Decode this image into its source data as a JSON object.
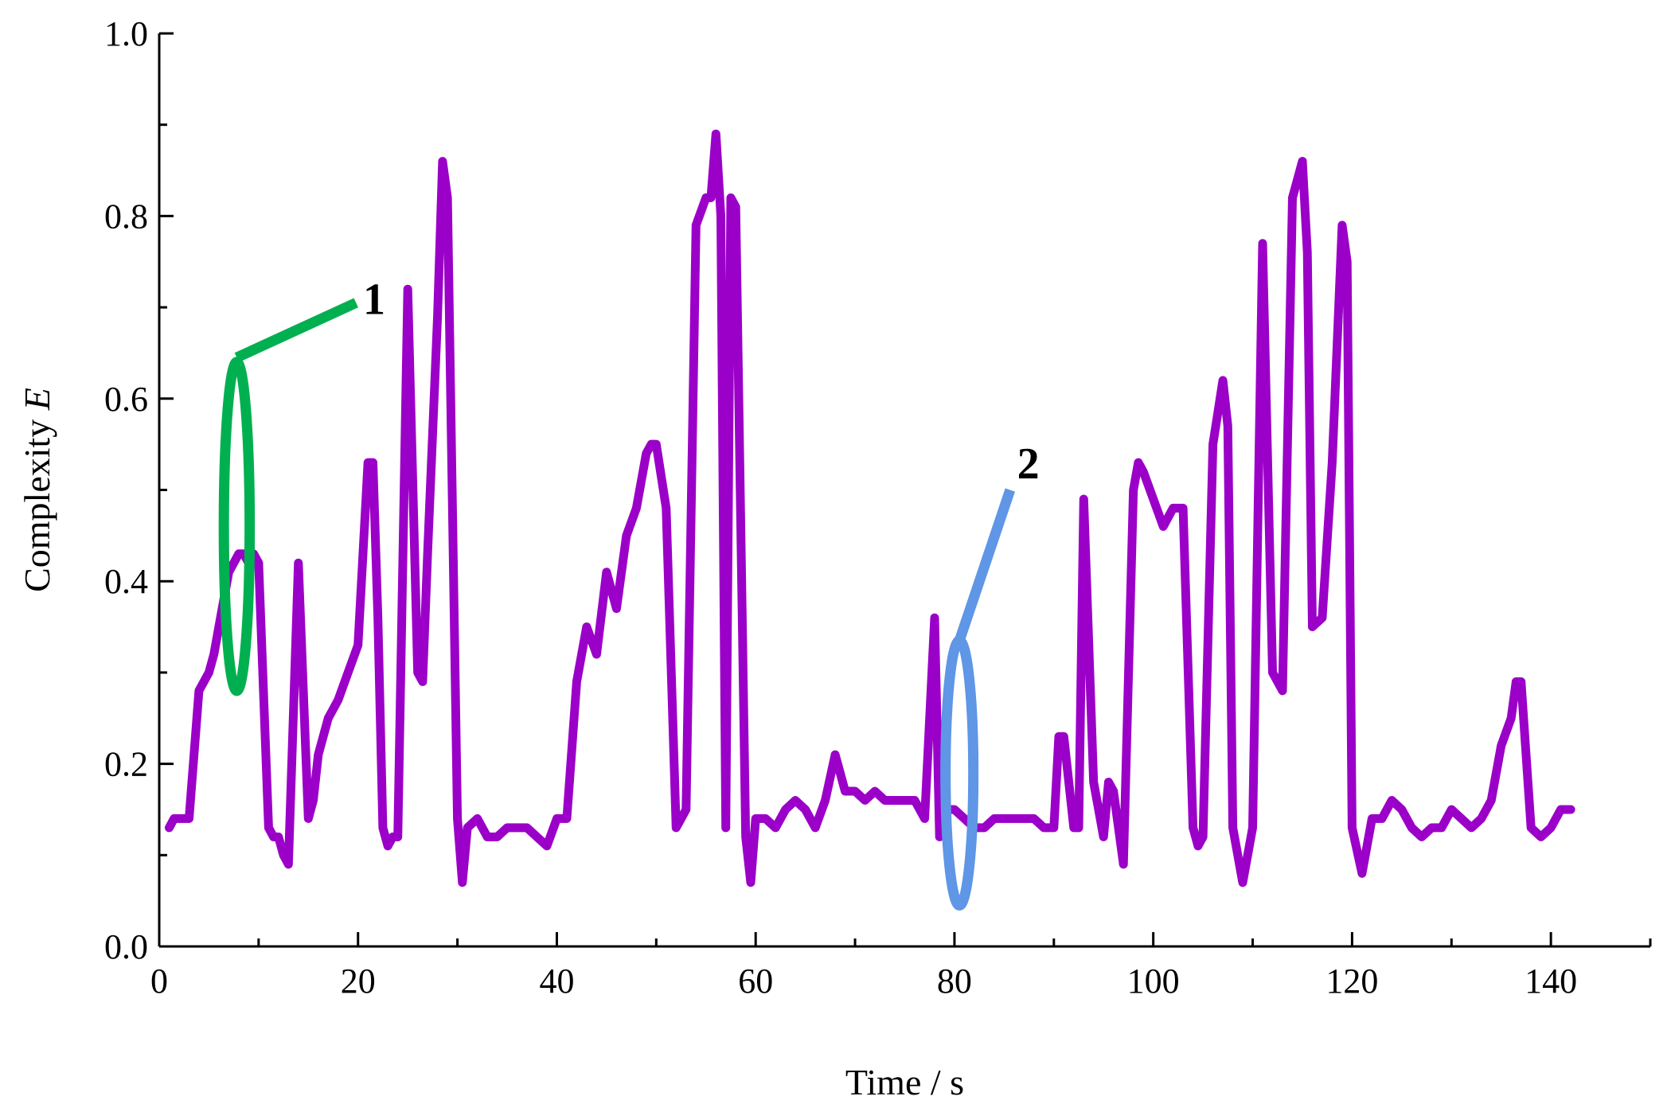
{
  "chart_data": {
    "type": "line",
    "title": "",
    "xlabel": "Time / s",
    "ylabel_prefix": "Complexity ",
    "ylabel_var": "E",
    "xlim": [
      0,
      150
    ],
    "ylim": [
      0,
      1.0
    ],
    "x_ticks": [
      0,
      20,
      40,
      60,
      80,
      100,
      120,
      140
    ],
    "y_ticks": [
      0.0,
      0.2,
      0.4,
      0.6,
      0.8,
      1.0
    ],
    "x_tick_labels": [
      "0",
      "20",
      "40",
      "60",
      "80",
      "100",
      "120",
      "140"
    ],
    "y_tick_labels": [
      "0.0",
      "0.2",
      "0.4",
      "0.6",
      "0.8",
      "1.0"
    ],
    "grid": false,
    "legend": "none",
    "series": [
      {
        "name": "Complexity E",
        "color": "#9b00c8",
        "x": [
          1,
          1.5,
          2,
          3,
          4,
          5,
          5.5,
          6,
          7,
          8,
          8.5,
          9,
          9.5,
          10,
          11,
          11.5,
          12,
          12.5,
          13,
          14,
          15,
          15.5,
          16,
          17,
          18,
          19,
          20,
          21,
          21.5,
          22,
          22.5,
          23,
          23.5,
          24,
          25,
          26,
          26.5,
          27,
          28,
          28.5,
          29,
          30,
          30.5,
          31,
          32,
          33,
          34,
          35,
          36,
          37,
          38,
          39,
          40,
          41,
          42,
          43,
          44,
          45,
          46,
          47,
          48,
          49,
          49.5,
          50,
          51,
          52,
          53,
          54,
          55,
          55.5,
          56,
          56.5,
          57,
          57.5,
          58,
          59,
          59.5,
          60,
          61,
          62,
          63,
          64,
          65,
          66,
          67,
          68,
          69,
          70,
          71,
          72,
          73,
          74,
          75,
          76,
          77,
          78,
          78.5,
          79,
          80,
          81,
          82,
          83,
          84,
          85,
          86,
          87,
          88,
          89,
          90,
          90.5,
          91,
          92,
          92.5,
          93,
          94,
          95,
          95.5,
          96,
          97,
          98,
          98.5,
          99,
          100,
          101,
          102,
          103,
          104,
          104.5,
          105,
          106,
          107,
          107.5,
          108,
          109,
          110,
          111,
          112,
          113,
          114,
          115,
          115.5,
          116,
          117,
          118,
          119,
          119.5,
          120,
          121,
          122,
          123,
          124,
          125,
          126,
          127,
          128,
          129,
          130,
          131,
          132,
          133,
          134,
          135,
          136,
          136.5,
          137,
          138,
          139,
          140,
          141,
          142
        ],
        "y": [
          0.13,
          0.14,
          0.14,
          0.14,
          0.28,
          0.3,
          0.32,
          0.35,
          0.41,
          0.43,
          0.43,
          0.42,
          0.43,
          0.42,
          0.13,
          0.12,
          0.12,
          0.1,
          0.09,
          0.42,
          0.14,
          0.16,
          0.21,
          0.25,
          0.27,
          0.3,
          0.33,
          0.53,
          0.53,
          0.36,
          0.13,
          0.11,
          0.12,
          0.12,
          0.72,
          0.3,
          0.29,
          0.43,
          0.69,
          0.86,
          0.82,
          0.14,
          0.07,
          0.13,
          0.14,
          0.12,
          0.12,
          0.13,
          0.13,
          0.13,
          0.12,
          0.11,
          0.14,
          0.14,
          0.29,
          0.35,
          0.32,
          0.41,
          0.37,
          0.45,
          0.48,
          0.54,
          0.55,
          0.55,
          0.48,
          0.13,
          0.15,
          0.79,
          0.82,
          0.82,
          0.89,
          0.8,
          0.13,
          0.82,
          0.81,
          0.12,
          0.07,
          0.14,
          0.14,
          0.13,
          0.15,
          0.16,
          0.15,
          0.13,
          0.16,
          0.21,
          0.17,
          0.17,
          0.16,
          0.17,
          0.16,
          0.16,
          0.16,
          0.16,
          0.14,
          0.36,
          0.12,
          0.15,
          0.15,
          0.14,
          0.13,
          0.13,
          0.14,
          0.14,
          0.14,
          0.14,
          0.14,
          0.13,
          0.13,
          0.23,
          0.23,
          0.13,
          0.13,
          0.49,
          0.18,
          0.12,
          0.18,
          0.17,
          0.09,
          0.5,
          0.53,
          0.52,
          0.49,
          0.46,
          0.48,
          0.48,
          0.13,
          0.11,
          0.12,
          0.55,
          0.62,
          0.57,
          0.13,
          0.07,
          0.13,
          0.77,
          0.3,
          0.28,
          0.82,
          0.86,
          0.76,
          0.35,
          0.36,
          0.53,
          0.79,
          0.75,
          0.13,
          0.08,
          0.14,
          0.14,
          0.16,
          0.15,
          0.13,
          0.12,
          0.13,
          0.13,
          0.15,
          0.14,
          0.13,
          0.14,
          0.16,
          0.22,
          0.25,
          0.29,
          0.29,
          0.13,
          0.12,
          0.13,
          0.15,
          0.15
        ]
      }
    ],
    "annotations": [
      {
        "label": "1",
        "color": "#00b050",
        "cx": 7.8,
        "cy": 0.46,
        "rx": 1.3,
        "ry": 0.18,
        "leader_start": [
          7.8,
          0.645
        ],
        "leader_end": [
          19.8,
          0.705
        ],
        "label_pos": [
          20.5,
          0.71
        ]
      },
      {
        "label": "2",
        "color": "#5f96e6",
        "cx": 80.5,
        "cy": 0.19,
        "rx": 1.4,
        "ry": 0.145,
        "leader_start": [
          80.5,
          0.335
        ],
        "leader_end": [
          85.6,
          0.5
        ],
        "label_pos": [
          86.3,
          0.53
        ]
      }
    ]
  }
}
